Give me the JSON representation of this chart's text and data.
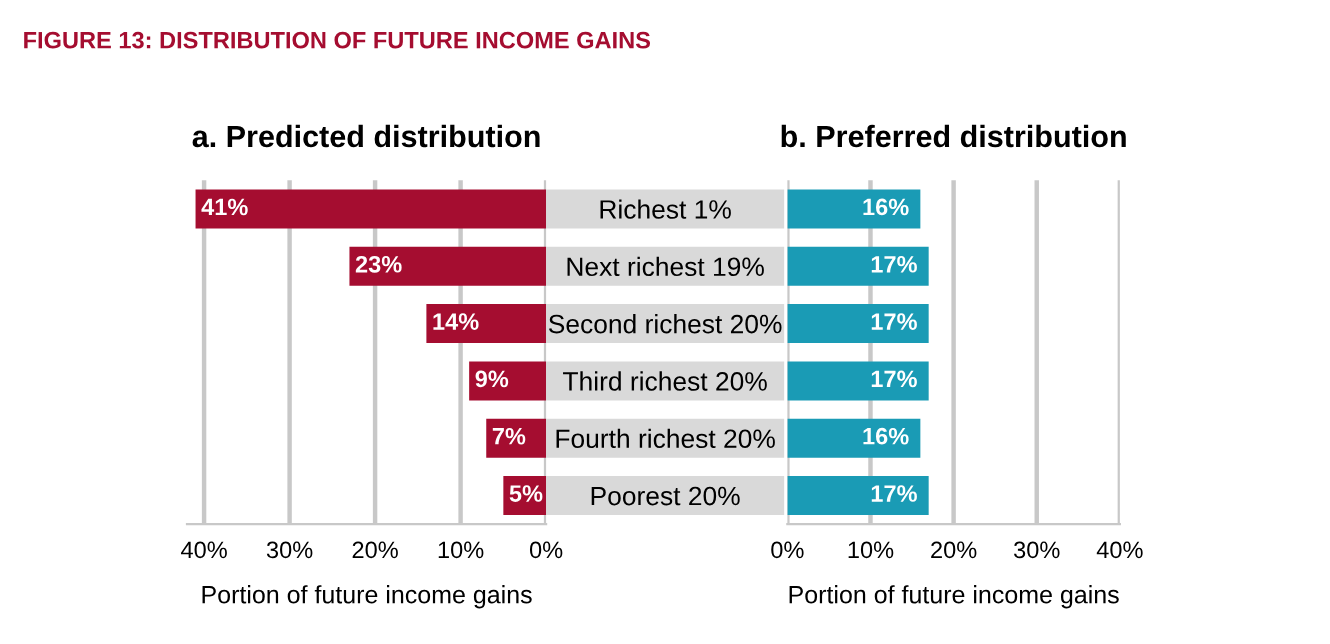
{
  "chart_data": [
    {
      "type": "bar",
      "orientation": "horizontal",
      "title": "a. Predicted distribution",
      "xlabel": "Portion of future income gains",
      "annotations": [
        "FIGURE 13: DISTRIBUTION OF FUTURE INCOME GAINS"
      ],
      "categories": [
        "Richest 1%",
        "Next richest 19%",
        "Second richest 20%",
        "Third richest 20%",
        "Fourth richest 20%",
        "Poorest 20%"
      ],
      "values": [
        41,
        23,
        14,
        9,
        7,
        5
      ],
      "color": "#a50d30",
      "value_labels": [
        "41%",
        "23%",
        "14%",
        "9%",
        "7%",
        "5%"
      ],
      "xlim": [
        42,
        0
      ],
      "xticks": [
        {
          "value": 40,
          "label": "40%"
        },
        {
          "value": 30,
          "label": "30%"
        },
        {
          "value": 20,
          "label": "20%"
        },
        {
          "value": 10,
          "label": "10%"
        },
        {
          "value": 0,
          "label": "0%"
        }
      ],
      "grid": "x"
    },
    {
      "type": "bar",
      "orientation": "horizontal",
      "title": "b. Preferred distribution",
      "xlabel": "Portion of future income gains",
      "categories": [
        null,
        null,
        null,
        null,
        null,
        null
      ],
      "values": [
        16,
        17,
        17,
        17,
        16,
        17
      ],
      "color": "#1a9bb5",
      "value_labels": [
        "16%",
        "17%",
        "17%",
        "17%",
        "16%",
        "17%"
      ],
      "xlim": [
        0,
        40
      ],
      "xticks": [
        {
          "value": 0,
          "label": "0%"
        },
        {
          "value": 10,
          "label": "10%"
        },
        {
          "value": 20,
          "label": "20%"
        },
        {
          "value": 30,
          "label": "30%"
        },
        {
          "value": 40,
          "label": "40%"
        }
      ],
      "grid": "x",
      "tick_labels": "x"
    }
  ]
}
